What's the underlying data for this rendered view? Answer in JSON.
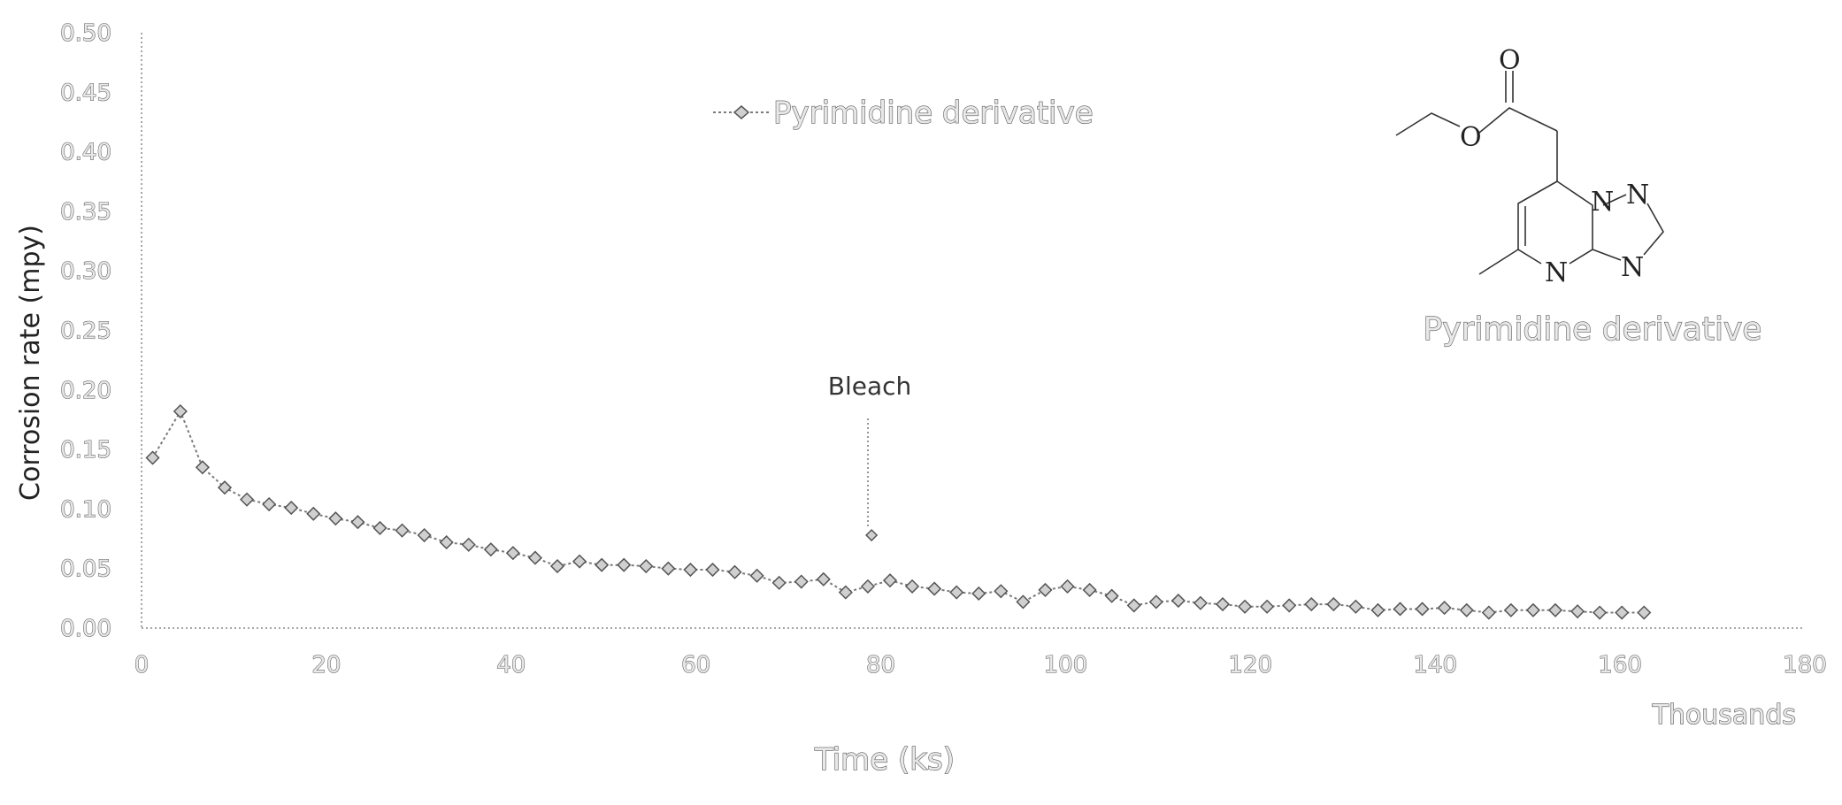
{
  "chart_data": {
    "type": "line",
    "title": "",
    "xlabel": "Time (ks)",
    "xlabel_units_note": "Thousands",
    "ylabel": "Corrosion rate (mpy)",
    "xlim": [
      0,
      180
    ],
    "ylim": [
      0,
      0.5
    ],
    "x_ticks": [
      "0",
      "20",
      "40",
      "60",
      "80",
      "100",
      "120",
      "140",
      "160",
      "180"
    ],
    "y_ticks": [
      "0.00",
      "0.05",
      "0.10",
      "0.15",
      "0.20",
      "0.25",
      "0.30",
      "0.35",
      "0.40",
      "0.45",
      "0.50"
    ],
    "grid": false,
    "legend_position": "top-center",
    "series": [
      {
        "name": "Pyrimidine derivative",
        "x": [
          1.2,
          4.2,
          6.6,
          9.0,
          11.4,
          13.8,
          16.2,
          18.6,
          21.0,
          23.4,
          25.8,
          28.2,
          30.6,
          33.0,
          35.4,
          37.8,
          40.2,
          42.6,
          45.0,
          47.4,
          49.8,
          52.2,
          54.6,
          57.0,
          59.4,
          61.8,
          64.2,
          66.6,
          69.0,
          71.4,
          73.8,
          76.2,
          78.6,
          81.0,
          83.4,
          85.8,
          88.2,
          90.6,
          93.0,
          95.4,
          97.8,
          100.2,
          102.6,
          105.0,
          107.4,
          109.8,
          112.2,
          114.6,
          117.0,
          119.4,
          121.8,
          124.2,
          126.6,
          129.0,
          131.4,
          133.8,
          136.2,
          138.6,
          141.0,
          143.4,
          145.8,
          148.2,
          150.6,
          153.0,
          155.4,
          157.8,
          160.2,
          162.6
        ],
        "y": [
          0.143,
          0.182,
          0.135,
          0.118,
          0.108,
          0.104,
          0.101,
          0.096,
          0.092,
          0.089,
          0.084,
          0.082,
          0.078,
          0.072,
          0.07,
          0.066,
          0.063,
          0.059,
          0.052,
          0.056,
          0.053,
          0.053,
          0.052,
          0.05,
          0.049,
          0.049,
          0.047,
          0.044,
          0.038,
          0.039,
          0.041,
          0.03,
          0.035,
          0.04,
          0.035,
          0.033,
          0.03,
          0.029,
          0.031,
          0.022,
          0.032,
          0.035,
          0.032,
          0.027,
          0.019,
          0.022,
          0.023,
          0.021,
          0.02,
          0.018,
          0.018,
          0.019,
          0.02,
          0.02,
          0.018,
          0.015,
          0.016,
          0.016,
          0.017,
          0.015,
          0.013,
          0.015,
          0.015,
          0.015,
          0.014,
          0.013,
          0.013,
          0.013
        ]
      }
    ],
    "annotations": [
      {
        "text": "Bleach",
        "x": 79,
        "y": 0.078,
        "type": "arrow-down"
      }
    ],
    "inset": {
      "type": "chemical-structure",
      "label": "Pyrimidine derivative",
      "atoms": [
        "O",
        "O",
        "N",
        "N",
        "N",
        "N"
      ]
    }
  },
  "colors": {
    "series": "#7a7a7a",
    "marker_fill": "#d0d0d0",
    "axis": "#888888"
  }
}
